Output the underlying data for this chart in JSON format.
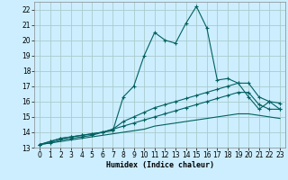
{
  "xlabel": "Humidex (Indice chaleur)",
  "background_color": "#cceeff",
  "grid_color": "#aacccc",
  "line_color": "#006060",
  "x_values": [
    0,
    1,
    2,
    3,
    4,
    5,
    6,
    7,
    8,
    9,
    10,
    11,
    12,
    13,
    14,
    15,
    16,
    17,
    18,
    19,
    20,
    21,
    22,
    23
  ],
  "series1": [
    13.2,
    13.4,
    13.6,
    13.7,
    13.8,
    13.9,
    14.0,
    14.1,
    16.3,
    17.0,
    19.0,
    20.5,
    20.0,
    19.8,
    21.1,
    22.2,
    20.8,
    17.4,
    17.5,
    17.2,
    16.3,
    15.5,
    16.0,
    15.5
  ],
  "series2": [
    13.2,
    13.4,
    13.6,
    13.7,
    13.8,
    13.9,
    14.0,
    14.2,
    14.7,
    15.0,
    15.3,
    15.6,
    15.8,
    16.0,
    16.2,
    16.4,
    16.6,
    16.8,
    17.0,
    17.2,
    17.2,
    16.3,
    16.0,
    15.9
  ],
  "series3": [
    13.2,
    13.3,
    13.5,
    13.6,
    13.7,
    13.8,
    14.0,
    14.2,
    14.4,
    14.6,
    14.8,
    15.0,
    15.2,
    15.4,
    15.6,
    15.8,
    16.0,
    16.2,
    16.4,
    16.6,
    16.6,
    15.8,
    15.5,
    15.5
  ],
  "series4": [
    13.2,
    13.3,
    13.4,
    13.5,
    13.6,
    13.7,
    13.8,
    13.9,
    14.0,
    14.1,
    14.2,
    14.4,
    14.5,
    14.6,
    14.7,
    14.8,
    14.9,
    15.0,
    15.1,
    15.2,
    15.2,
    15.1,
    15.0,
    14.9
  ],
  "ylim": [
    13,
    22.5
  ],
  "xlim": [
    -0.5,
    23.5
  ],
  "yticks": [
    13,
    14,
    15,
    16,
    17,
    18,
    19,
    20,
    21,
    22
  ],
  "xticks": [
    0,
    1,
    2,
    3,
    4,
    5,
    6,
    7,
    8,
    9,
    10,
    11,
    12,
    13,
    14,
    15,
    16,
    17,
    18,
    19,
    20,
    21,
    22,
    23
  ],
  "tick_fontsize": 5.5,
  "xlabel_fontsize": 6.0
}
